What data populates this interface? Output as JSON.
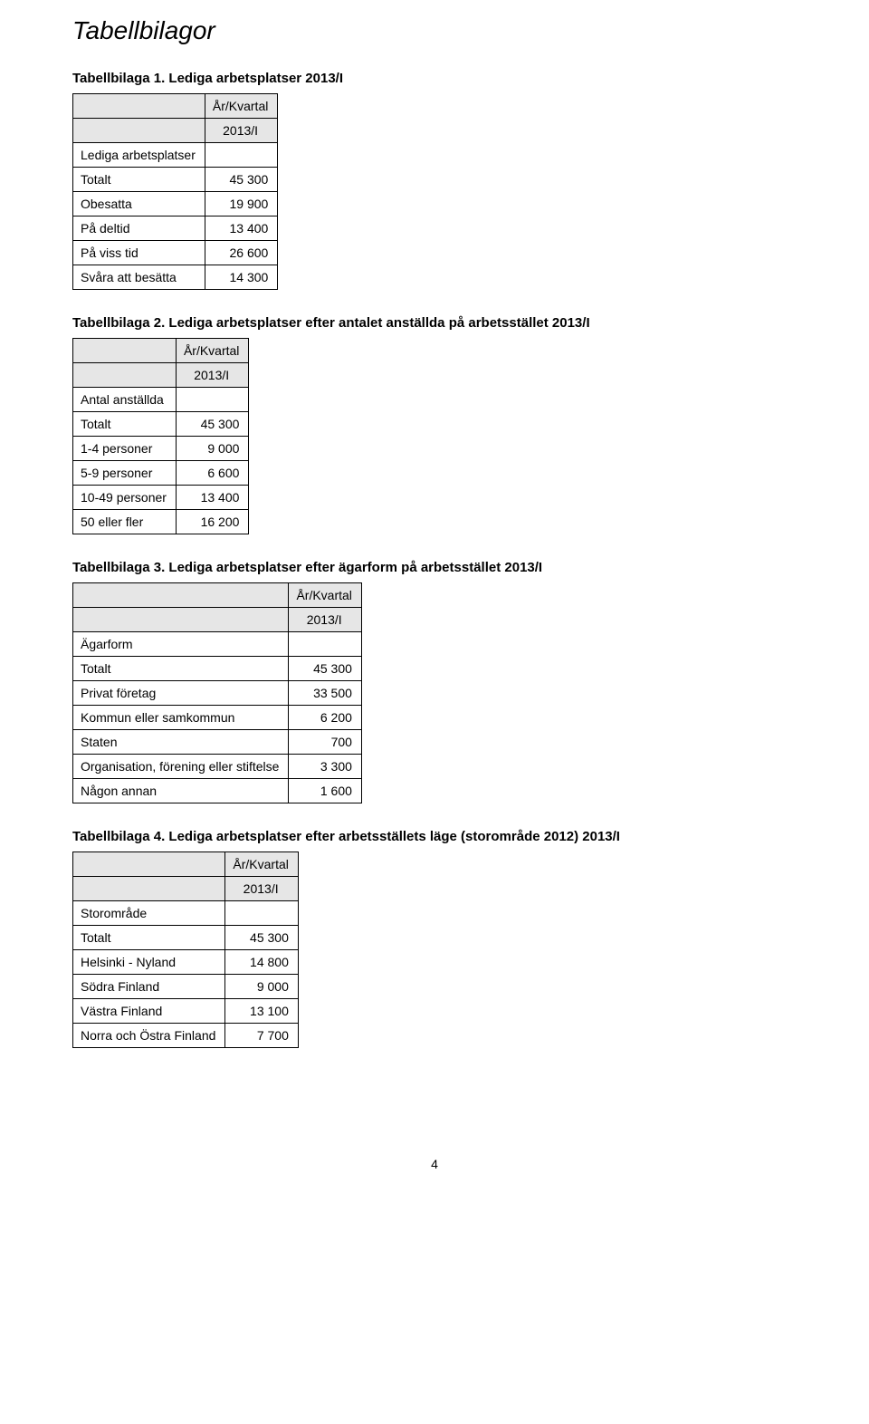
{
  "page_title": "Tabellbilagor",
  "footer_page_number": "4",
  "tables": {
    "t1": {
      "title": "Tabellbilaga 1. Lediga arbetsplatser 2013/I",
      "col_header_top": "År/Kvartal",
      "col_header_sub": "2013/I",
      "row_group_label": "Lediga arbetsplatser",
      "rows": [
        {
          "label": "Totalt",
          "value": "45 300"
        },
        {
          "label": "Obesatta",
          "value": "19 900"
        },
        {
          "label": "På deltid",
          "value": "13 400"
        },
        {
          "label": "På viss tid",
          "value": "26 600"
        },
        {
          "label": "Svåra att besätta",
          "value": "14 300"
        }
      ]
    },
    "t2": {
      "title": "Tabellbilaga 2. Lediga arbetsplatser efter antalet anställda på arbetsstället 2013/I",
      "col_header_top": "År/Kvartal",
      "col_header_sub": "2013/I",
      "row_group_label": "Antal anställda",
      "rows": [
        {
          "label": "Totalt",
          "value": "45 300"
        },
        {
          "label": "1-4 personer",
          "value": "9 000"
        },
        {
          "label": "5-9 personer",
          "value": "6 600"
        },
        {
          "label": "10-49 personer",
          "value": "13 400"
        },
        {
          "label": "50 eller fler",
          "value": "16 200"
        }
      ]
    },
    "t3": {
      "title": "Tabellbilaga 3. Lediga arbetsplatser efter ägarform på arbetsstället 2013/I",
      "col_header_top": "År/Kvartal",
      "col_header_sub": "2013/I",
      "row_group_label": "Ägarform",
      "rows": [
        {
          "label": "Totalt",
          "value": "45 300"
        },
        {
          "label": "Privat företag",
          "value": "33 500"
        },
        {
          "label": "Kommun eller samkommun",
          "value": "6 200"
        },
        {
          "label": "Staten",
          "value": "700"
        },
        {
          "label": "Organisation, förening eller stiftelse",
          "value": "3 300"
        },
        {
          "label": "Någon annan",
          "value": "1 600"
        }
      ]
    },
    "t4": {
      "title": "Tabellbilaga 4. Lediga arbetsplatser efter arbetsställets läge (storområde 2012) 2013/I",
      "col_header_top": "År/Kvartal",
      "col_header_sub": "2013/I",
      "row_group_label": "Storområde",
      "rows": [
        {
          "label": "Totalt",
          "value": "45 300"
        },
        {
          "label": "Helsinki - Nyland",
          "value": "14 800"
        },
        {
          "label": "Södra Finland",
          "value": "9 000"
        },
        {
          "label": "Västra Finland",
          "value": "13 100"
        },
        {
          "label": "Norra och Östra Finland",
          "value": "7 700"
        }
      ]
    }
  }
}
